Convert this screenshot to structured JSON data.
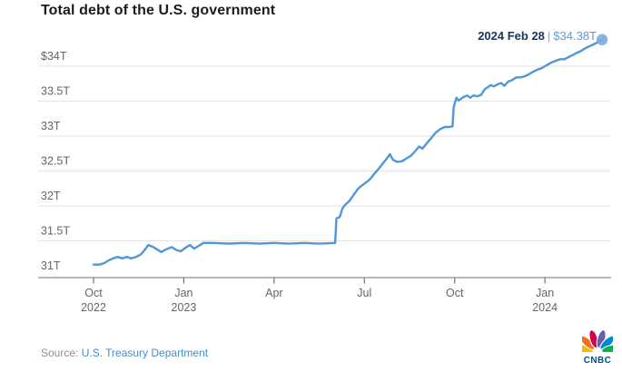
{
  "title": "Total debt of the U.S. government",
  "annotation": {
    "date": "2024 Feb 28",
    "separator": "|",
    "value": "$34.38T"
  },
  "source": {
    "prefix": "Source:",
    "link": "U.S. Treasury Department"
  },
  "logo": {
    "text": "CNBC",
    "feather_colors": [
      "#f5b800",
      "#f37021",
      "#cc004c",
      "#6460aa",
      "#0089d0",
      "#0db14b"
    ],
    "wordmark_color": "#004c8b"
  },
  "colors": {
    "line": "#4f97d7",
    "endpoint_dot": "#7cadde",
    "grid": "#e3e3e3",
    "axis": "#8e8e8e",
    "tick": "#707070",
    "tick_label": "#666666",
    "title_text": "#1c1c1c",
    "annotation_date": "#15375f",
    "annotation_separator": "#9aa5b1",
    "annotation_value": "#5b9bd5",
    "source_text": "#8f8f8f",
    "source_link": "#3f8ed2"
  },
  "chart_data": {
    "type": "line",
    "title": "Total debt of the U.S. government",
    "unit": "trillions of USD",
    "x_range": "Oct 2022 - Feb 28 2024",
    "ylim": [
      31,
      34.5
    ],
    "grid": "horizontal-only",
    "end_label": "2024 Feb 28 | $34.38T",
    "y_ticks": [
      {
        "value": 34,
        "label": "$34T"
      },
      {
        "value": 33.5,
        "label": "33.5T"
      },
      {
        "value": 33,
        "label": "33T"
      },
      {
        "value": 32.5,
        "label": "32.5T"
      },
      {
        "value": 32,
        "label": "32T"
      },
      {
        "value": 31.5,
        "label": "31.5T"
      },
      {
        "value": 31,
        "label": "31T"
      }
    ],
    "x_ticks": [
      {
        "month": 0,
        "label": "Oct",
        "year": "2022"
      },
      {
        "month": 3,
        "label": "Jan",
        "year": "2023"
      },
      {
        "month": 6,
        "label": "Apr",
        "year": ""
      },
      {
        "month": 9,
        "label": "Jul",
        "year": ""
      },
      {
        "month": 12,
        "label": "Oct",
        "year": ""
      },
      {
        "month": 15,
        "label": "Jan",
        "year": "2024"
      }
    ],
    "series": [
      {
        "name": "Total U.S. government debt ($T), months since Oct 2022",
        "points": [
          [
            0,
            31.16
          ],
          [
            0.2,
            31.16
          ],
          [
            0.35,
            31.18
          ],
          [
            0.5,
            31.22
          ],
          [
            0.65,
            31.25
          ],
          [
            0.8,
            31.27
          ],
          [
            0.95,
            31.25
          ],
          [
            1.1,
            31.27
          ],
          [
            1.25,
            31.25
          ],
          [
            1.42,
            31.27
          ],
          [
            1.58,
            31.31
          ],
          [
            1.72,
            31.38
          ],
          [
            1.82,
            31.44
          ],
          [
            1.95,
            31.42
          ],
          [
            2.1,
            31.38
          ],
          [
            2.25,
            31.34
          ],
          [
            2.42,
            31.38
          ],
          [
            2.6,
            31.41
          ],
          [
            2.75,
            31.37
          ],
          [
            2.9,
            31.35
          ],
          [
            3.05,
            31.4
          ],
          [
            3.2,
            31.44
          ],
          [
            3.35,
            31.39
          ],
          [
            3.5,
            31.43
          ],
          [
            3.65,
            31.47
          ],
          [
            4.0,
            31.47
          ],
          [
            4.5,
            31.46
          ],
          [
            5.0,
            31.47
          ],
          [
            5.5,
            31.46
          ],
          [
            6.0,
            31.47
          ],
          [
            6.5,
            31.46
          ],
          [
            7.0,
            31.47
          ],
          [
            7.5,
            31.46
          ],
          [
            8.03,
            31.47
          ],
          [
            8.07,
            31.82
          ],
          [
            8.18,
            31.84
          ],
          [
            8.28,
            31.97
          ],
          [
            8.37,
            32.02
          ],
          [
            8.48,
            32.06
          ],
          [
            8.58,
            32.12
          ],
          [
            8.68,
            32.18
          ],
          [
            8.78,
            32.24
          ],
          [
            8.88,
            32.28
          ],
          [
            9.0,
            32.32
          ],
          [
            9.1,
            32.35
          ],
          [
            9.2,
            32.39
          ],
          [
            9.33,
            32.46
          ],
          [
            9.47,
            32.53
          ],
          [
            9.6,
            32.6
          ],
          [
            9.75,
            32.68
          ],
          [
            9.85,
            32.74
          ],
          [
            9.95,
            32.66
          ],
          [
            10.1,
            32.63
          ],
          [
            10.25,
            32.64
          ],
          [
            10.4,
            32.68
          ],
          [
            10.55,
            32.72
          ],
          [
            10.68,
            32.78
          ],
          [
            10.82,
            32.85
          ],
          [
            10.93,
            32.82
          ],
          [
            11.08,
            32.9
          ],
          [
            11.22,
            32.97
          ],
          [
            11.37,
            33.05
          ],
          [
            11.52,
            33.1
          ],
          [
            11.67,
            33.13
          ],
          [
            11.82,
            33.13
          ],
          [
            11.93,
            33.14
          ],
          [
            11.97,
            33.42
          ],
          [
            12.06,
            33.55
          ],
          [
            12.13,
            33.51
          ],
          [
            12.2,
            33.53
          ],
          [
            12.3,
            33.56
          ],
          [
            12.42,
            33.58
          ],
          [
            12.52,
            33.55
          ],
          [
            12.62,
            33.58
          ],
          [
            12.75,
            33.57
          ],
          [
            12.88,
            33.59
          ],
          [
            13.0,
            33.67
          ],
          [
            13.1,
            33.7
          ],
          [
            13.2,
            33.73
          ],
          [
            13.3,
            33.71
          ],
          [
            13.42,
            33.74
          ],
          [
            13.55,
            33.76
          ],
          [
            13.65,
            33.72
          ],
          [
            13.78,
            33.78
          ],
          [
            13.9,
            33.8
          ],
          [
            14.05,
            33.84
          ],
          [
            14.18,
            33.84
          ],
          [
            14.3,
            33.85
          ],
          [
            14.45,
            33.88
          ],
          [
            14.6,
            33.92
          ],
          [
            14.75,
            33.95
          ],
          [
            14.88,
            33.97
          ],
          [
            15.0,
            34.0
          ],
          [
            15.12,
            34.03
          ],
          [
            15.25,
            34.06
          ],
          [
            15.38,
            34.08
          ],
          [
            15.5,
            34.1
          ],
          [
            15.65,
            34.1
          ],
          [
            15.78,
            34.13
          ],
          [
            15.92,
            34.16
          ],
          [
            16.05,
            34.19
          ],
          [
            16.2,
            34.22
          ],
          [
            16.35,
            34.26
          ],
          [
            16.5,
            34.29
          ],
          [
            16.65,
            34.32
          ],
          [
            16.78,
            34.35
          ],
          [
            16.9,
            34.38
          ]
        ]
      }
    ]
  }
}
